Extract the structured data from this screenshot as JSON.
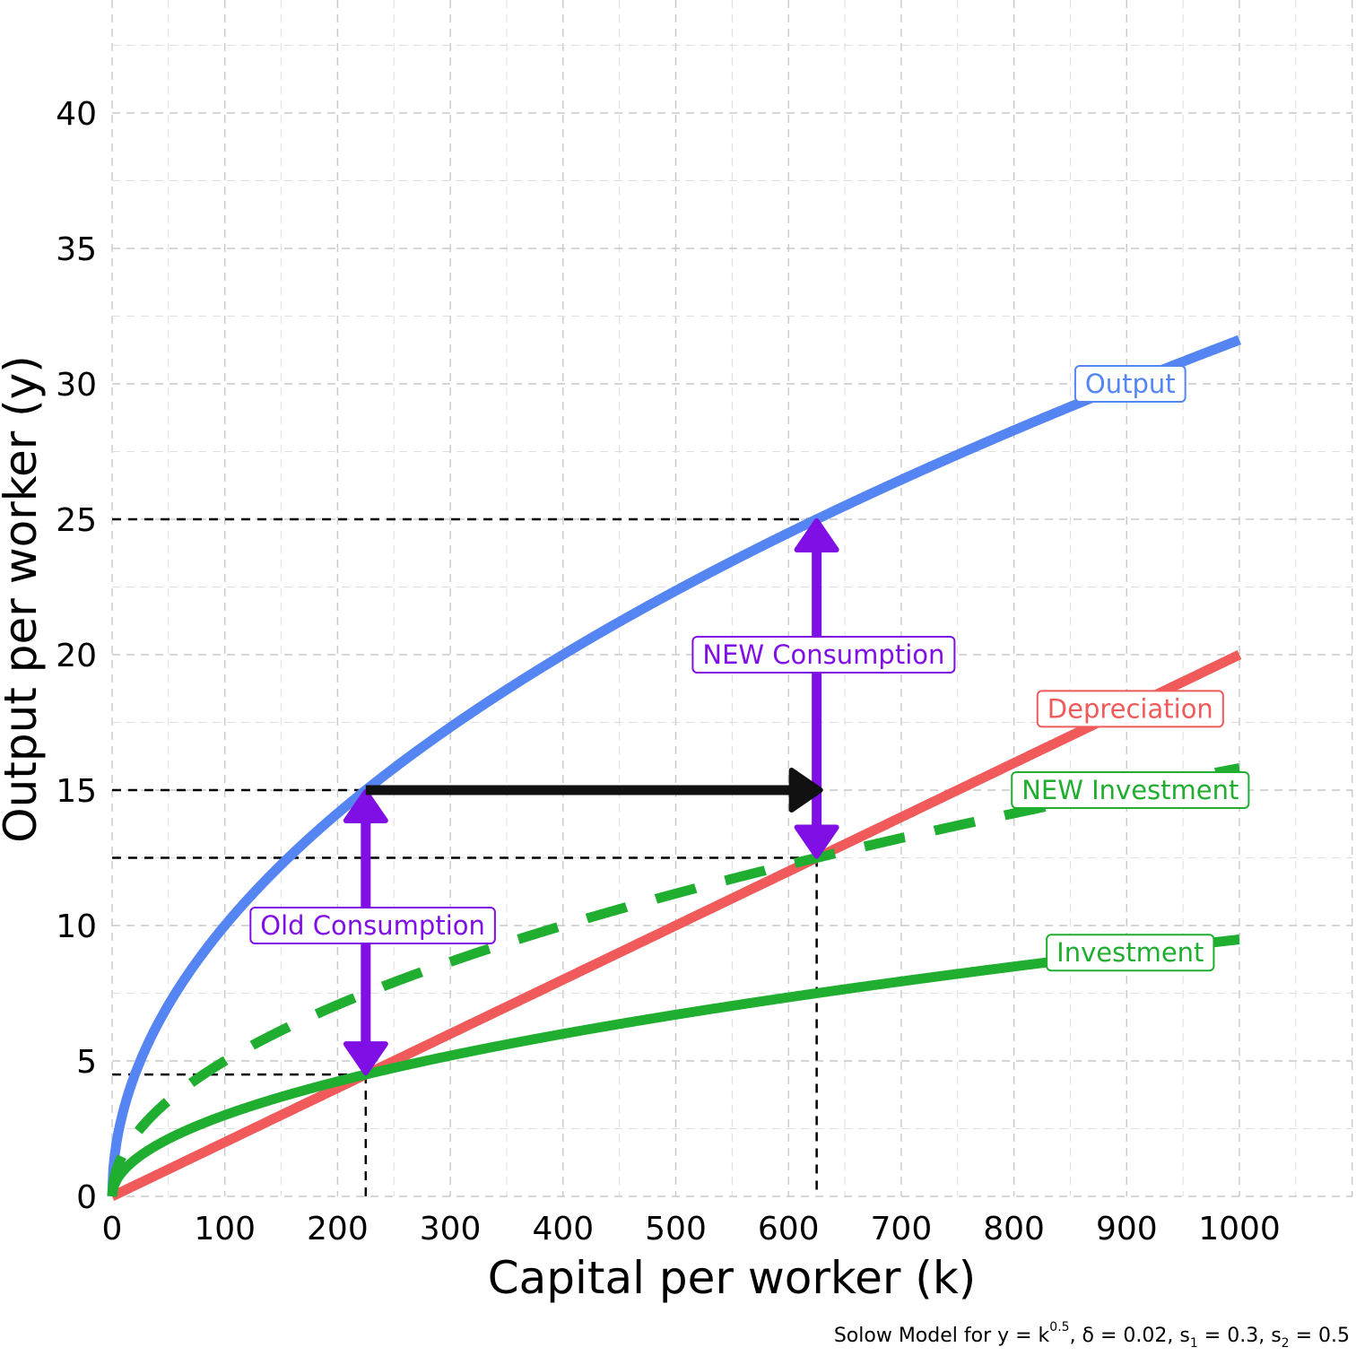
{
  "chart_data": {
    "type": "line",
    "xlabel": "Capital per worker (k)",
    "ylabel": "Output per worker (y)",
    "caption": {
      "prefix": "Solow Model for y = k",
      "exponent": "0.5",
      "delta": ", δ = 0.02, s",
      "s1_sub": "1",
      "s1_val": " = 0.3, s",
      "s2_sub": "2",
      "s2_val": " = 0.5"
    },
    "xlim": [
      0,
      1000
    ],
    "ylim": [
      0,
      40
    ],
    "x_ticks": [
      0,
      100,
      200,
      300,
      400,
      500,
      600,
      700,
      800,
      900,
      1000
    ],
    "y_ticks": [
      0,
      5,
      10,
      15,
      20,
      25,
      30,
      35,
      40
    ],
    "grid": true,
    "colors": {
      "output": "#5485F2",
      "depreciation": "#F05A5A",
      "investment": "#1FAE2F",
      "consumption": "#7F0FE4",
      "shift_arrow": "#111111"
    },
    "series": [
      {
        "name": "Output",
        "label": "Output",
        "formula": "k^0.5",
        "color": "#5485F2",
        "style": "solid",
        "label_at": [
          900,
          30
        ]
      },
      {
        "name": "Depreciation",
        "label": "Depreciation",
        "formula": "0.02k",
        "color": "#F05A5A",
        "style": "solid",
        "label_at": [
          900,
          18
        ]
      },
      {
        "name": "NEW Investment",
        "label": "NEW Investment",
        "formula": "0.5k^0.5",
        "color": "#1FAE2F",
        "style": "dashed",
        "label_at": [
          900,
          15
        ]
      },
      {
        "name": "Investment",
        "label": "Investment",
        "formula": "0.3k^0.5",
        "color": "#1FAE2F",
        "style": "solid",
        "label_at": [
          900,
          9
        ]
      }
    ],
    "steady_states": [
      {
        "k": 225,
        "output": 15,
        "investment": 4.5
      },
      {
        "k": 625,
        "output": 25,
        "investment": 12.5
      }
    ],
    "annotations": [
      {
        "text": "Old Consumption",
        "x": 228,
        "y": 10,
        "from": [
          225,
          15
        ],
        "to": [
          225,
          4.5
        ]
      },
      {
        "text": "NEW Consumption",
        "x": 628,
        "y": 20,
        "from": [
          625,
          25
        ],
        "to": [
          625,
          12.5
        ]
      },
      {
        "text": "",
        "from": [
          225,
          15
        ],
        "to": [
          625,
          15
        ],
        "kind": "shift"
      }
    ]
  }
}
